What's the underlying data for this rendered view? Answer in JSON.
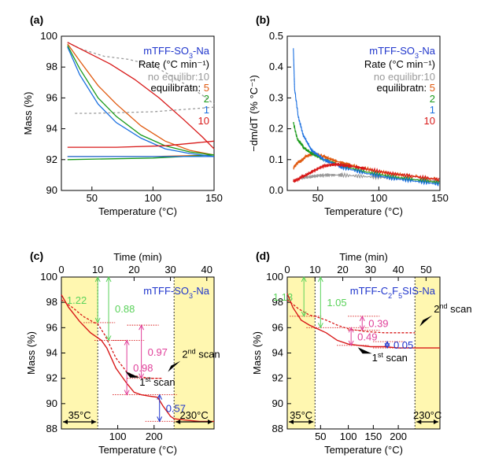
{
  "colors": {
    "black": "#000000",
    "grey": "#9a9a9a",
    "orange": "#e05a10",
    "green": "#1a9a1a",
    "blue": "#1a6fe0",
    "red": "#d81818",
    "navy": "#1f35cc",
    "magenta": "#e0409a",
    "lightgreen": "#5ad25a",
    "zone": "#fff7b0"
  },
  "chart_data": [
    {
      "panel": "(a)",
      "type": "line",
      "title": "mTFF-SO3-Na",
      "title_sub": "3",
      "xlabel": "Temperature (°C)",
      "ylabel": "Mass (%)",
      "xlim": [
        25,
        150
      ],
      "ylim": [
        90,
        100
      ],
      "xticks": [
        "50",
        "100",
        "150"
      ],
      "yticks": [
        "90",
        "92",
        "94",
        "96",
        "98",
        "100"
      ],
      "legend_header": "Rate (°C min⁻¹)",
      "series": [
        {
          "name": "no equilibr:10",
          "label_a": "no equilibr:",
          "label_b": "10",
          "color": "grey",
          "dashed": true,
          "x": [
            30,
            40,
            60,
            80,
            100,
            120,
            140,
            150
          ],
          "y": [
            99.6,
            99.2,
            98.7,
            98.5,
            98.1,
            97.2,
            96.2,
            95.6
          ],
          "cool_x": [
            150,
            100,
            50,
            35
          ],
          "cool_y": [
            95.4,
            95.1,
            95.0,
            95.0
          ]
        },
        {
          "name": "5",
          "color": "orange",
          "x": [
            30,
            40,
            55,
            70,
            90,
            110,
            130,
            150
          ],
          "y": [
            99.5,
            98.4,
            96.8,
            95.6,
            94.2,
            93.2,
            92.6,
            92.3
          ],
          "cool_x": [
            150,
            100,
            30
          ],
          "cool_y": [
            92.3,
            92.2,
            92.2
          ]
        },
        {
          "name": "2",
          "color": "green",
          "x": [
            30,
            40,
            55,
            70,
            90,
            110,
            130,
            150
          ],
          "y": [
            99.4,
            97.9,
            96.0,
            94.8,
            93.6,
            92.9,
            92.5,
            92.3
          ],
          "cool_x": [
            150,
            100,
            30
          ],
          "cool_y": [
            92.3,
            92.1,
            92.0
          ]
        },
        {
          "name": "1",
          "color": "blue",
          "x": [
            30,
            40,
            55,
            70,
            90,
            110,
            130,
            150
          ],
          "y": [
            99.3,
            97.5,
            95.6,
            94.4,
            93.4,
            92.7,
            92.4,
            92.2
          ],
          "cool_x": [
            150,
            100,
            30
          ],
          "cool_y": [
            92.2,
            92.2,
            92.2
          ]
        },
        {
          "name": "10",
          "color": "red",
          "x": [
            30,
            45,
            65,
            85,
            105,
            125,
            140,
            150
          ],
          "y": [
            99.6,
            99.0,
            98.2,
            97.2,
            96.0,
            94.6,
            93.5,
            92.7
          ],
          "cool_x": [
            150,
            110,
            70,
            30
          ],
          "cool_y": [
            93.2,
            92.9,
            92.8,
            92.8
          ]
        }
      ]
    },
    {
      "panel": "(b)",
      "type": "line",
      "title": "mTFF-SO3-Na",
      "title_sub": "3",
      "xlabel": "Temperature (°C)",
      "ylabel": "−dm/dT (% °C⁻¹)",
      "xlim": [
        25,
        150
      ],
      "ylim": [
        0,
        0.5
      ],
      "xticks": [
        "50",
        "100",
        "150"
      ],
      "yticks": [
        "0.0",
        "0.1",
        "0.2",
        "0.3",
        "0.4",
        "0.5"
      ],
      "legend_header": "Rate (°C min⁻¹)",
      "series": [
        {
          "name": "no equilibr:10",
          "label_a": "no equilibr:",
          "label_b": "10",
          "color": "grey",
          "x": [
            35,
            45,
            55,
            70,
            90,
            110,
            130,
            150
          ],
          "y": [
            0.04,
            0.045,
            0.05,
            0.05,
            0.045,
            0.04,
            0.035,
            0.03
          ]
        },
        {
          "name": "5",
          "color": "orange",
          "x": [
            30,
            35,
            40,
            47,
            55,
            65,
            80,
            100,
            120,
            150
          ],
          "y": [
            0.07,
            0.095,
            0.11,
            0.12,
            0.11,
            0.095,
            0.08,
            0.06,
            0.05,
            0.035
          ]
        },
        {
          "name": "2",
          "color": "green",
          "x": [
            30,
            33,
            38,
            45,
            55,
            70,
            90,
            110,
            130,
            150
          ],
          "y": [
            0.22,
            0.17,
            0.14,
            0.12,
            0.1,
            0.08,
            0.06,
            0.045,
            0.035,
            0.025
          ]
        },
        {
          "name": "1",
          "color": "blue",
          "x": [
            30,
            31,
            34,
            38,
            45,
            55,
            70,
            90,
            110,
            130,
            150
          ],
          "y": [
            0.46,
            0.33,
            0.24,
            0.18,
            0.13,
            0.1,
            0.075,
            0.055,
            0.04,
            0.03,
            0.02
          ]
        },
        {
          "name": "10",
          "color": "red",
          "x": [
            30,
            33,
            38,
            45,
            55,
            65,
            75,
            90,
            110,
            130,
            150
          ],
          "y": [
            0.03,
            0.035,
            0.045,
            0.06,
            0.08,
            0.085,
            0.08,
            0.07,
            0.055,
            0.045,
            0.035
          ]
        }
      ]
    },
    {
      "panel": "(c)",
      "type": "line",
      "title": "mTFF-SO3-Na",
      "title_sub": "3",
      "xlabel": "Temperature (°C)",
      "x2label": "Time (min)",
      "ylabel": "Mass (%)",
      "xlim": [
        0,
        42
      ],
      "ylim": [
        88,
        100
      ],
      "x2ticks": [
        "0",
        "10",
        "20",
        "30",
        "40"
      ],
      "xticks": [
        "100",
        "200"
      ],
      "xtick_time": [
        15.5,
        25.5
      ],
      "yticks": [
        "88",
        "90",
        "92",
        "94",
        "96",
        "98",
        "100"
      ],
      "iso_left": [
        0,
        10
      ],
      "iso_right": [
        31,
        42
      ],
      "iso_left_label": "35°C",
      "iso_right_label": "230°C",
      "scan1": {
        "label": "1",
        "sup": "st",
        "word": "scan",
        "x": [
          0,
          2,
          5,
          8,
          10,
          11,
          12.5,
          15,
          18,
          20,
          22,
          24,
          26.5,
          28,
          30,
          31,
          34,
          38,
          42
        ],
        "y": [
          98.6,
          97.6,
          96.5,
          95.6,
          95.2,
          95.0,
          94.4,
          92.8,
          91.6,
          90.9,
          90.7,
          90.6,
          90.5,
          89.8,
          89.0,
          88.8,
          88.7,
          88.6,
          88.6
        ]
      },
      "scan2": {
        "label": "2",
        "sup": "nd",
        "word": "scan",
        "x": [
          0,
          3,
          6,
          9,
          10,
          12,
          15,
          18,
          20,
          22,
          25,
          28
        ],
        "y": [
          98.2,
          97.6,
          96.9,
          96.4,
          96.3,
          95.4,
          93.6,
          92.5,
          92.2,
          92.1,
          92.0,
          92.0
        ]
      },
      "annotations": [
        {
          "text": "1.22",
          "color": "lightgreen",
          "y_top": 100,
          "y_bot": 96.4,
          "x": 10
        },
        {
          "text": "0.88",
          "color": "lightgreen",
          "y_top": 100,
          "y_bot": 95.0,
          "x": 13
        },
        {
          "text": "0.97",
          "color": "magenta",
          "y_top": 96.2,
          "y_bot": 92.0,
          "x": 22
        },
        {
          "text": "0.98",
          "color": "magenta",
          "y_top": 95.0,
          "y_bot": 90.7,
          "x": 18
        },
        {
          "text": "0.57",
          "color": "navy",
          "y_top": 90.7,
          "y_bot": 88.6,
          "x": 27
        }
      ]
    },
    {
      "panel": "(d)",
      "type": "line",
      "title": "mTFF-C2F5SIS-Na",
      "title_sub": "2",
      "title_sub2": "5",
      "xlabel": "Temperature (°C)",
      "x2label": "Time (min)",
      "ylabel": "Mass (%)",
      "xlim": [
        0,
        55
      ],
      "ylim": [
        88,
        100
      ],
      "x2ticks": [
        "0",
        "10",
        "20",
        "30",
        "40",
        "50"
      ],
      "xticks": [
        "50",
        "100",
        "150",
        "200"
      ],
      "xtick_time": [
        12,
        22,
        31,
        40
      ],
      "yticks": [
        "88",
        "90",
        "92",
        "94",
        "96",
        "98",
        "100"
      ],
      "iso_left": [
        0,
        10
      ],
      "iso_right": [
        46,
        55
      ],
      "iso_left_label": "35°C",
      "iso_right_label": "230°C",
      "scan1": {
        "label": "1",
        "sup": "st",
        "word": "scan",
        "x": [
          0,
          2,
          5,
          8,
          10,
          14,
          18,
          22,
          26,
          30,
          35,
          40,
          46,
          50,
          55
        ],
        "y": [
          98.7,
          97.6,
          96.6,
          96.2,
          96.0,
          95.6,
          95.0,
          94.7,
          94.6,
          94.5,
          94.5,
          94.4,
          94.4,
          94.4,
          94.4
        ]
      },
      "scan2": {
        "label": "2",
        "sup": "nd",
        "word": "scan",
        "x": [
          0,
          4,
          8,
          10,
          14,
          18,
          22,
          28,
          35,
          40,
          46
        ],
        "y": [
          98.2,
          97.5,
          97.0,
          96.9,
          96.6,
          96.2,
          95.9,
          95.7,
          95.6,
          95.6,
          95.6
        ]
      },
      "annotations": [
        {
          "text": "1.13",
          "color": "lightgreen",
          "y_top": 100,
          "y_bot": 96.9,
          "x": 6
        },
        {
          "text": "1.05",
          "color": "lightgreen",
          "y_top": 100,
          "y_bot": 96.0,
          "x": 12
        },
        {
          "text": "0.39",
          "color": "magenta",
          "y_top": 96.9,
          "y_bot": 95.8,
          "x": 27
        },
        {
          "text": "0.49",
          "color": "magenta",
          "y_top": 96.0,
          "y_bot": 94.6,
          "x": 23
        },
        {
          "text": "0.05",
          "color": "navy",
          "y_top": 94.9,
          "y_bot": 94.4,
          "x": 36
        }
      ]
    }
  ]
}
